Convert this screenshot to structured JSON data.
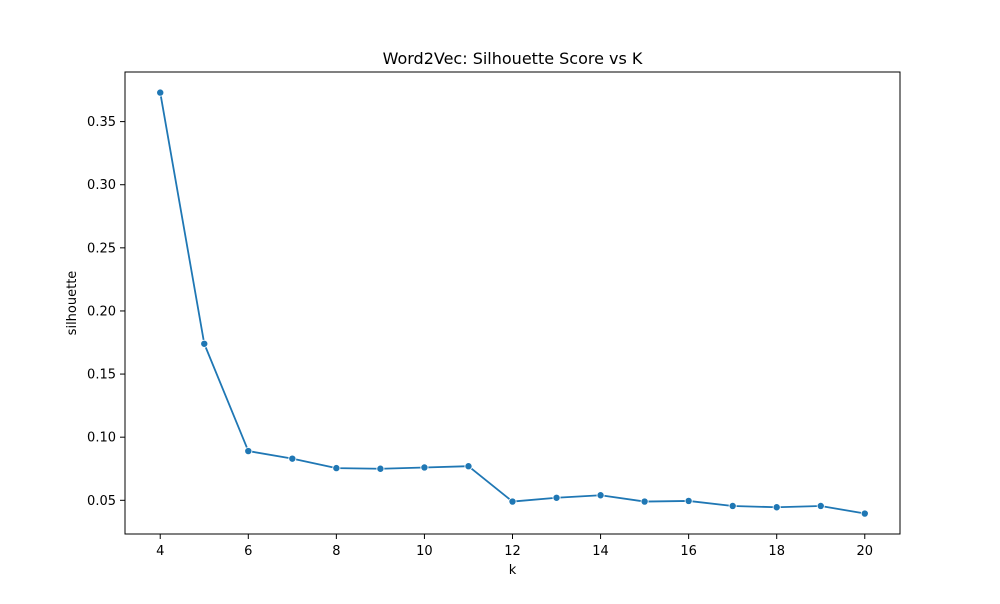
{
  "chart_data": {
    "type": "line",
    "title": "Word2Vec: Silhouette Score vs K",
    "xlabel": "k",
    "ylabel": "silhouette",
    "x": [
      4,
      5,
      6,
      7,
      8,
      9,
      10,
      11,
      12,
      13,
      14,
      15,
      16,
      17,
      18,
      19,
      20
    ],
    "series": [
      {
        "values": [
          0.373,
          0.174,
          0.089,
          0.083,
          0.0755,
          0.075,
          0.076,
          0.077,
          0.049,
          0.052,
          0.054,
          0.049,
          0.0495,
          0.0455,
          0.0445,
          0.0455,
          0.0395
        ],
        "color": "#1f77b4",
        "marker": "circle"
      }
    ],
    "xlim": [
      3.2,
      20.8
    ],
    "ylim": [
      0.0233,
      0.3893
    ],
    "xticks": [
      4,
      6,
      8,
      10,
      12,
      14,
      16,
      18,
      20
    ],
    "yticks": [
      0.05,
      0.1,
      0.15,
      0.2,
      0.25,
      0.3,
      0.35
    ],
    "ytick_labels": [
      "0.05",
      "0.10",
      "0.15",
      "0.20",
      "0.25",
      "0.30",
      "0.35"
    ],
    "grid": false,
    "legend": "none"
  }
}
